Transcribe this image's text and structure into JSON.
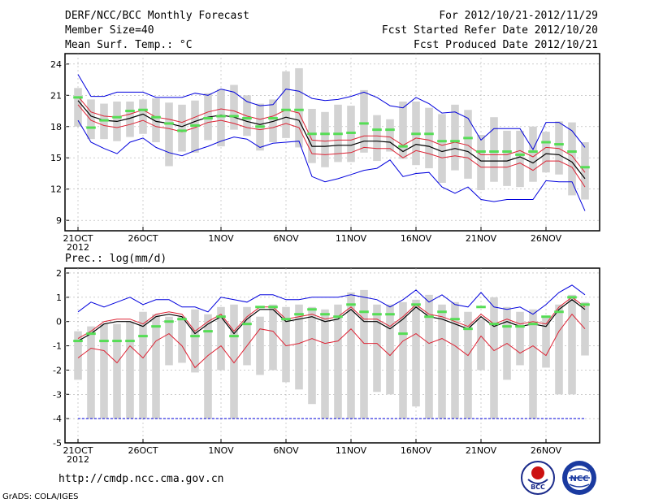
{
  "header": {
    "title": "DERF/NCC/BCC Monthly Forecast",
    "member_size": "Member Size=40",
    "variable": "Mean Surf. Temp.: °C",
    "period": "For 2012/10/21-2012/11/29",
    "started": "Fcst Started Refer Date 2012/10/20",
    "produced": "Fcst Produced Date 2012/10/21"
  },
  "footer": {
    "url": "http://cmdp.ncc.cma.gov.cn",
    "credit": "GrADS: COLA/IGES",
    "logo_left": "BCC",
    "logo_right": "NCC"
  },
  "colors": {
    "box": "#d3d3d3",
    "obs": "#55dd55",
    "mean": "#000000",
    "band": "#dd2233",
    "spread": "#0000dd"
  },
  "chart_data": [
    {
      "type": "box-plume",
      "title": "Mean Surf. Temp.: °C",
      "ylim": [
        8,
        25
      ],
      "yticks": [
        9,
        12,
        15,
        18,
        21,
        24
      ],
      "x_days": 40,
      "xticks": [
        {
          "day": 0,
          "label": "21OCT",
          "year": "2012"
        },
        {
          "day": 5,
          "label": "26OCT"
        },
        {
          "day": 11,
          "label": "1NOV"
        },
        {
          "day": 16,
          "label": "6NOV"
        },
        {
          "day": 21,
          "label": "11NOV"
        },
        {
          "day": 26,
          "label": "16NOV"
        },
        {
          "day": 31,
          "label": "21NOV"
        },
        {
          "day": 36,
          "label": "26NOV"
        }
      ],
      "box_high": [
        21.7,
        20.6,
        20.2,
        20.4,
        20.4,
        20.6,
        20.7,
        20.3,
        20.1,
        20.5,
        21.2,
        21.6,
        22.0,
        21.0,
        20.2,
        20.6,
        23.3,
        23.6,
        19.7,
        19.4,
        20.1,
        20.0,
        21.5,
        19.1,
        18.7,
        20.4,
        20.4,
        19.8,
        19.2,
        20.1,
        19.6,
        17.2,
        18.9,
        17.6,
        17.6,
        18.0,
        17.5,
        18.5,
        18.4,
        16.5
      ],
      "box_low": [
        18.0,
        16.8,
        16.8,
        16.6,
        17.0,
        17.3,
        16.5,
        14.2,
        15.6,
        15.5,
        16.7,
        16.1,
        17.7,
        17.1,
        15.7,
        16.5,
        16.9,
        16.0,
        14.5,
        14.1,
        14.6,
        14.6,
        15.5,
        14.7,
        15.6,
        14.9,
        14.3,
        14.0,
        12.6,
        13.8,
        13.0,
        11.9,
        12.7,
        12.3,
        12.2,
        12.7,
        13.6,
        13.4,
        11.4,
        11.0
      ],
      "obs": [
        20.8,
        17.9,
        18.6,
        18.9,
        19.5,
        19.6,
        18.9,
        18.3,
        17.6,
        18.1,
        18.8,
        19.0,
        19.0,
        18.8,
        18.0,
        18.8,
        19.6,
        19.6,
        17.3,
        17.3,
        17.3,
        17.4,
        18.3,
        17.7,
        17.7,
        16.1,
        17.3,
        17.3,
        16.6,
        16.6,
        16.9,
        15.6,
        15.6,
        15.6,
        15.3,
        15.6,
        16.5,
        16.3,
        15.6,
        14.1
      ],
      "mean": [
        20.5,
        19.0,
        18.6,
        18.5,
        18.8,
        19.2,
        18.5,
        18.3,
        18.0,
        18.5,
        18.9,
        19.1,
        18.9,
        18.5,
        18.2,
        18.5,
        18.9,
        18.6,
        16.1,
        16.1,
        16.2,
        16.2,
        16.6,
        16.6,
        16.5,
        15.6,
        16.3,
        16.1,
        15.6,
        15.9,
        15.6,
        14.7,
        14.7,
        14.7,
        15.1,
        14.5,
        15.4,
        15.3,
        14.6,
        13.0
      ],
      "upper": [
        20.9,
        19.4,
        19.0,
        18.9,
        19.2,
        19.6,
        18.9,
        18.7,
        18.4,
        18.9,
        19.4,
        19.7,
        19.5,
        19.0,
        18.7,
        19.0,
        19.6,
        19.3,
        16.7,
        16.6,
        16.7,
        16.7,
        17.1,
        17.1,
        17.0,
        16.2,
        16.9,
        16.7,
        16.2,
        16.5,
        16.2,
        15.3,
        15.3,
        15.3,
        15.7,
        15.1,
        16.0,
        15.9,
        15.2,
        13.6
      ],
      "lower": [
        20.1,
        18.6,
        18.1,
        17.9,
        18.2,
        18.6,
        18.0,
        17.8,
        17.5,
        17.9,
        18.4,
        18.6,
        18.3,
        17.9,
        17.7,
        17.9,
        18.3,
        17.9,
        15.4,
        15.3,
        15.4,
        15.5,
        16.0,
        15.9,
        15.9,
        15.0,
        15.7,
        15.4,
        15.0,
        15.2,
        15.0,
        14.1,
        14.1,
        14.1,
        14.5,
        13.8,
        14.7,
        14.7,
        14.1,
        12.2
      ],
      "spread_high": [
        23.0,
        20.9,
        20.9,
        21.3,
        21.3,
        21.3,
        20.8,
        20.8,
        20.8,
        21.2,
        21.0,
        21.6,
        21.3,
        20.4,
        20.0,
        20.1,
        21.6,
        21.4,
        20.7,
        20.5,
        20.6,
        20.9,
        21.3,
        20.8,
        20.0,
        19.8,
        20.8,
        20.2,
        19.3,
        19.4,
        18.8,
        16.7,
        17.8,
        17.8,
        17.8,
        15.8,
        18.4,
        18.4,
        17.6,
        16.0
      ],
      "spread_low": [
        18.6,
        16.5,
        15.9,
        15.4,
        16.5,
        16.9,
        16.0,
        15.5,
        15.2,
        15.7,
        16.1,
        16.6,
        17.0,
        16.8,
        16.0,
        16.4,
        16.5,
        16.6,
        13.2,
        12.7,
        13.0,
        13.4,
        13.8,
        14.0,
        14.8,
        13.2,
        13.5,
        13.6,
        12.2,
        11.6,
        12.2,
        11.0,
        10.8,
        11.0,
        11.0,
        11.0,
        12.8,
        12.7,
        12.7,
        9.9
      ]
    },
    {
      "type": "box-plume",
      "title": "Prec.: log(mm/d)",
      "ylim": [
        -5,
        2.2
      ],
      "yticks": [
        -5,
        -4,
        -3,
        -2,
        -1,
        0,
        1,
        2
      ],
      "x_days": 40,
      "xticks": [
        {
          "day": 0,
          "label": "21OCT",
          "year": "2012"
        },
        {
          "day": 5,
          "label": "26OCT"
        },
        {
          "day": 11,
          "label": "1NOV"
        },
        {
          "day": 16,
          "label": "6NOV"
        },
        {
          "day": 21,
          "label": "11NOV"
        },
        {
          "day": 26,
          "label": "16NOV"
        },
        {
          "day": 31,
          "label": "21NOV"
        },
        {
          "day": 36,
          "label": "26NOV"
        }
      ],
      "floor": -4,
      "box_high": [
        -0.4,
        -0.2,
        -0.1,
        -0.1,
        0.0,
        0.4,
        0.3,
        0.2,
        0.2,
        0.5,
        0.3,
        0.6,
        0.7,
        0.6,
        0.2,
        0.7,
        0.6,
        0.7,
        0.6,
        0.5,
        0.7,
        1.2,
        1.3,
        0.7,
        0.7,
        0.8,
        0.9,
        1.1,
        0.7,
        0.8,
        0.4,
        0.1,
        1.0,
        0.6,
        0.4,
        0.5,
        0.2,
        0.7,
        1.1,
        0.8
      ],
      "box_low": [
        -2.4,
        -4.0,
        -4.0,
        -4.0,
        -4.0,
        -4.0,
        -4.0,
        -1.8,
        -1.7,
        -2.1,
        -4.0,
        -2.0,
        -4.0,
        -1.8,
        -2.2,
        -2.0,
        -2.5,
        -2.8,
        -3.4,
        -4.0,
        -4.0,
        -4.0,
        -4.0,
        -2.9,
        -3.0,
        -4.0,
        -3.5,
        -4.0,
        -4.0,
        -4.0,
        -4.0,
        -2.0,
        -4.0,
        -2.4,
        -1.8,
        -4.0,
        -1.9,
        -3.0,
        -3.0,
        -1.4
      ],
      "obs": [
        -0.8,
        -0.5,
        -0.8,
        -0.8,
        -0.8,
        -0.6,
        -0.2,
        0.0,
        0.1,
        -0.6,
        -0.4,
        0.2,
        -0.6,
        -0.1,
        0.6,
        0.6,
        0.1,
        0.3,
        0.5,
        0.3,
        0.2,
        0.7,
        0.4,
        0.3,
        0.3,
        -0.5,
        0.7,
        0.2,
        0.4,
        0.1,
        -0.3,
        0.6,
        -0.1,
        -0.2,
        -0.2,
        -0.1,
        0.2,
        0.4,
        1.0,
        0.7
      ],
      "mean": [
        -0.8,
        -0.5,
        -0.1,
        0.0,
        0.0,
        -0.2,
        0.2,
        0.3,
        0.2,
        -0.5,
        -0.1,
        0.2,
        -0.5,
        0.1,
        0.5,
        0.5,
        0.0,
        0.1,
        0.2,
        0.0,
        0.1,
        0.5,
        0.0,
        0.0,
        -0.3,
        0.1,
        0.6,
        0.2,
        0.1,
        -0.1,
        -0.3,
        0.2,
        -0.2,
        0.0,
        -0.2,
        -0.1,
        -0.2,
        0.5,
        0.9,
        0.5
      ],
      "upper": [
        -0.7,
        -0.4,
        0.0,
        0.1,
        0.1,
        -0.1,
        0.3,
        0.4,
        0.3,
        -0.4,
        0.0,
        0.3,
        -0.4,
        0.2,
        0.6,
        0.6,
        0.1,
        0.2,
        0.3,
        0.1,
        0.2,
        0.6,
        0.1,
        0.1,
        -0.2,
        0.2,
        0.7,
        0.3,
        0.2,
        0.0,
        -0.2,
        0.3,
        -0.1,
        0.1,
        -0.1,
        0.0,
        -0.1,
        0.6,
        1.0,
        0.6
      ],
      "lower": [
        -1.5,
        -1.1,
        -1.2,
        -1.7,
        -1.0,
        -1.5,
        -0.8,
        -0.5,
        -1.0,
        -1.9,
        -1.4,
        -1.0,
        -1.7,
        -1.0,
        -0.3,
        -0.4,
        -1.0,
        -0.9,
        -0.7,
        -0.9,
        -0.8,
        -0.3,
        -0.9,
        -0.9,
        -1.4,
        -0.8,
        -0.5,
        -0.9,
        -0.7,
        -1.0,
        -1.4,
        -0.6,
        -1.2,
        -0.9,
        -1.3,
        -1.0,
        -1.4,
        -0.4,
        0.3,
        -0.3
      ],
      "spread_high": [
        0.4,
        0.8,
        0.6,
        0.8,
        1.0,
        0.7,
        0.9,
        0.9,
        0.6,
        0.6,
        0.4,
        1.0,
        0.9,
        0.8,
        1.1,
        1.1,
        0.9,
        0.9,
        1.0,
        1.0,
        1.0,
        1.1,
        1.0,
        0.9,
        0.6,
        0.9,
        1.3,
        0.8,
        1.1,
        0.7,
        0.6,
        1.2,
        0.6,
        0.5,
        0.6,
        0.3,
        0.7,
        1.2,
        1.5,
        1.1
      ]
    }
  ]
}
